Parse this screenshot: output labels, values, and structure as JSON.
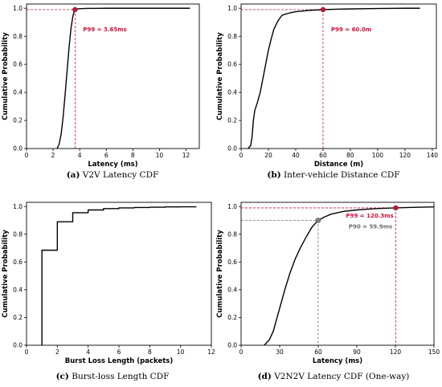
{
  "colors": {
    "curve": "#000000",
    "p99": "#d1103a",
    "p90": "#6e6e6e",
    "marker_p90": "#808080"
  },
  "chart_data": [
    {
      "type": "line",
      "caption": {
        "letter": "(a)",
        "text": " V2V Latency CDF"
      },
      "xlabel": "Latency (ms)",
      "ylabel": "Cumulative Probability",
      "xlim": [
        0,
        13
      ],
      "ylim": [
        0,
        1.03
      ],
      "xticks": [
        0,
        2,
        4,
        6,
        8,
        10,
        12
      ],
      "yticks": [
        0.0,
        0.2,
        0.4,
        0.6,
        0.8,
        1.0
      ],
      "series": [
        {
          "step": false,
          "x": [
            2.3,
            2.45,
            2.6,
            2.75,
            2.9,
            3.05,
            3.2,
            3.35,
            3.5,
            3.65,
            3.8,
            4.0,
            4.5,
            6,
            8,
            10,
            12.3
          ],
          "y": [
            0.0,
            0.03,
            0.1,
            0.22,
            0.38,
            0.55,
            0.72,
            0.86,
            0.95,
            0.99,
            0.995,
            0.997,
            0.999,
            1.0,
            1.0,
            1.0,
            1.0
          ]
        }
      ],
      "markers": [
        {
          "x": 3.65,
          "y": 0.99,
          "label": "P99 = 3.65ms",
          "color": "p99",
          "vline": true,
          "hline": true
        }
      ]
    },
    {
      "type": "line",
      "caption": {
        "letter": "(b)",
        "text": " Inter-vehicle Distance CDF"
      },
      "xlabel": "Distance (m)",
      "ylabel": "Cumulative Probability",
      "xlim": [
        0,
        143
      ],
      "ylim": [
        0,
        1.03
      ],
      "xticks": [
        0,
        20,
        40,
        60,
        80,
        100,
        120,
        140
      ],
      "yticks": [
        0.0,
        0.2,
        0.4,
        0.6,
        0.8,
        1.0
      ],
      "series": [
        {
          "step": false,
          "x": [
            5,
            7,
            8,
            9,
            10,
            11,
            12,
            14,
            16,
            18,
            20,
            22,
            24,
            27,
            30,
            35,
            40,
            50,
            60,
            70,
            80,
            100,
            120,
            131
          ],
          "y": [
            0.0,
            0.02,
            0.08,
            0.2,
            0.27,
            0.3,
            0.33,
            0.4,
            0.5,
            0.6,
            0.7,
            0.78,
            0.85,
            0.91,
            0.95,
            0.965,
            0.975,
            0.985,
            0.99,
            0.993,
            0.995,
            0.998,
            1.0,
            1.0
          ]
        }
      ],
      "markers": [
        {
          "x": 60,
          "y": 0.99,
          "label": "P99 = 60.0m",
          "color": "p99",
          "vline": true,
          "hline": true
        }
      ]
    },
    {
      "type": "line",
      "caption": {
        "letter": "(c)",
        "text": " Burst-loss Length CDF"
      },
      "xlabel": "Burst Loss Length (packets)",
      "ylabel": "Cumulative Probability",
      "xlim": [
        0,
        12
      ],
      "ylim": [
        0,
        1.03
      ],
      "xticks": [
        0,
        2,
        4,
        6,
        8,
        10,
        12
      ],
      "yticks": [
        0.0,
        0.2,
        0.4,
        0.6,
        0.8,
        1.0
      ],
      "series": [
        {
          "step": true,
          "x": [
            1,
            1,
            2,
            3,
            4,
            5,
            6,
            7,
            8,
            9,
            10,
            11
          ],
          "y": [
            0.0,
            0.685,
            0.89,
            0.955,
            0.975,
            0.985,
            0.99,
            0.993,
            0.995,
            0.997,
            0.998,
            1.0
          ]
        }
      ],
      "markers": []
    },
    {
      "type": "line",
      "caption": {
        "letter": "(d)",
        "text": " V2N2V Latency CDF (One-way)"
      },
      "xlabel": "Latency (ms)",
      "ylabel": "Cumulative Probability",
      "xlim": [
        0,
        150
      ],
      "ylim": [
        0,
        1.03
      ],
      "xticks": [
        0,
        30,
        60,
        90,
        120,
        150
      ],
      "yticks": [
        0.0,
        0.2,
        0.4,
        0.6,
        0.8,
        1.0
      ],
      "series": [
        {
          "step": false,
          "x": [
            18,
            22,
            25,
            28,
            31,
            34,
            38,
            42,
            46,
            50,
            55,
            59.9,
            65,
            70,
            80,
            90,
            100,
            110,
            120.3,
            130,
            140,
            150
          ],
          "y": [
            0.0,
            0.04,
            0.1,
            0.2,
            0.3,
            0.4,
            0.52,
            0.62,
            0.7,
            0.77,
            0.85,
            0.9,
            0.925,
            0.945,
            0.965,
            0.975,
            0.982,
            0.987,
            0.99,
            0.993,
            0.995,
            0.997
          ]
        }
      ],
      "markers": [
        {
          "x": 120.3,
          "y": 0.99,
          "label": "P99 = 120.3ms",
          "color": "p99",
          "vline": true,
          "hline": true
        },
        {
          "x": 59.9,
          "y": 0.9,
          "label": "P90 = 59.9ms",
          "color": "p90",
          "vline": true,
          "hline": true
        }
      ]
    }
  ]
}
